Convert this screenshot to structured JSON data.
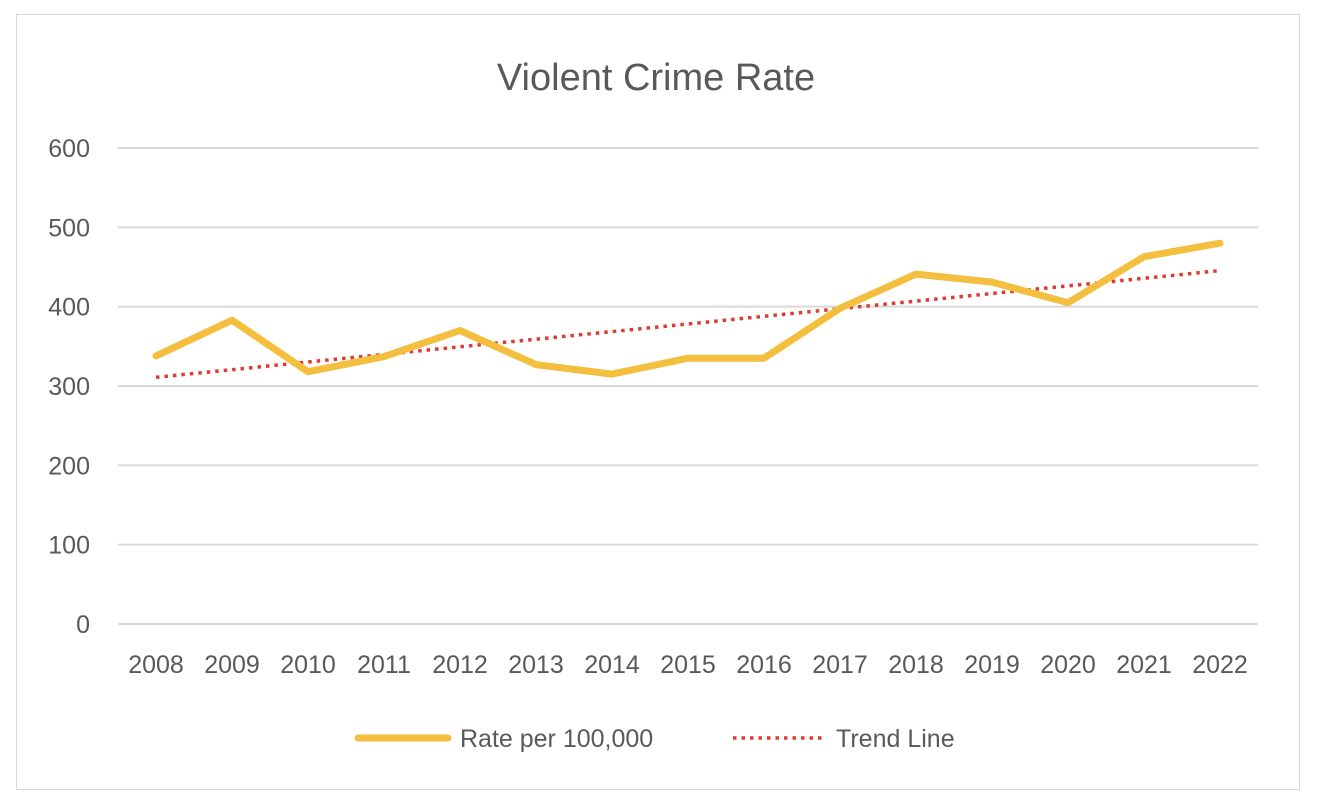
{
  "chart_data": {
    "type": "line",
    "title": "Violent Crime Rate",
    "xlabel": "",
    "ylabel": "",
    "categories": [
      "2008",
      "2009",
      "2010",
      "2011",
      "2012",
      "2013",
      "2014",
      "2015",
      "2016",
      "2017",
      "2018",
      "2019",
      "2020",
      "2021",
      "2022"
    ],
    "series": [
      {
        "name": "Rate per 100,000",
        "color": "#F4BE3E",
        "style": "solid",
        "values": [
          338,
          383,
          318,
          337,
          370,
          327,
          315,
          335,
          335,
          398,
          441,
          431,
          405,
          463,
          480
        ]
      },
      {
        "name": "Trend Line",
        "color": "#E03A32",
        "style": "dotted",
        "values": [
          311,
          320.6,
          330.2,
          339.8,
          349.4,
          359,
          368.6,
          378.2,
          387.8,
          397.4,
          407,
          416.6,
          426.2,
          435.8,
          445.4
        ]
      }
    ],
    "ylim": [
      0,
      600
    ],
    "yticks": [
      0,
      100,
      200,
      300,
      400,
      500,
      600
    ],
    "grid": true,
    "legend": "bottom"
  }
}
